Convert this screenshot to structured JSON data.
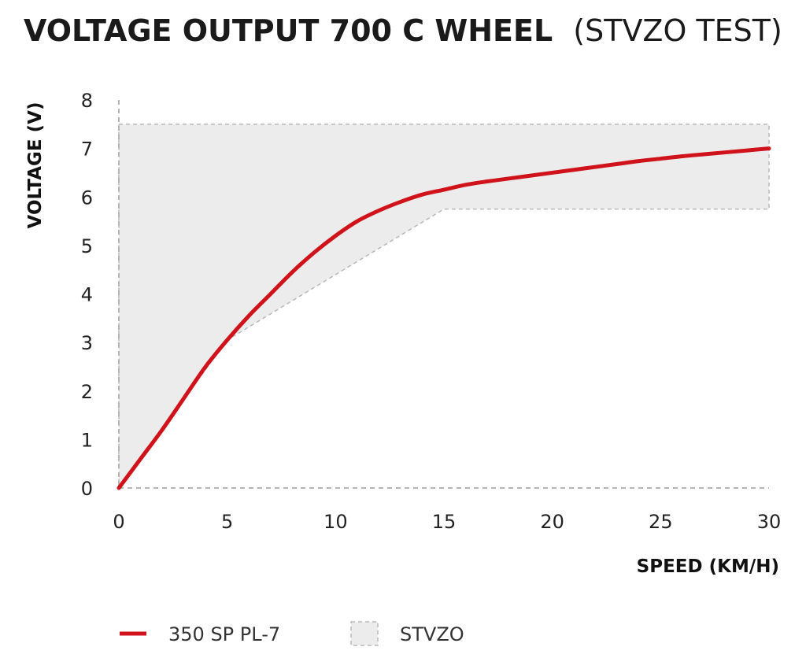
{
  "colors": {
    "series_line": "#d0121b",
    "band_fill": "#ececec",
    "band_stroke": "#b9b9b9",
    "text": "#1a1a1a",
    "axis": "#b5b5b5"
  },
  "chart_data": {
    "type": "line",
    "title": "VOLTAGE OUTPUT 700 C WHEEL",
    "subtitle": "(STVZO TEST)",
    "xlabel": "SPEED (KM/H)",
    "ylabel": "VOLTAGE (V)",
    "xlim": [
      0,
      30
    ],
    "ylim": [
      0,
      8
    ],
    "x_ticks": [
      0,
      5,
      10,
      15,
      20,
      25,
      30
    ],
    "y_ticks": [
      0,
      1,
      2,
      3,
      4,
      5,
      6,
      7,
      8
    ],
    "grid": false,
    "legend": "bottom",
    "series": [
      {
        "name": "350 SP PL-7",
        "x": [
          0,
          1,
          2,
          3,
          4,
          5,
          6,
          7,
          8,
          9,
          10,
          11,
          12,
          13,
          14,
          15,
          16,
          17,
          18,
          19,
          20,
          21,
          22,
          23,
          24,
          25,
          26,
          27,
          28,
          29,
          30
        ],
        "y": [
          0,
          0.6,
          1.2,
          1.85,
          2.5,
          3.05,
          3.55,
          4.0,
          4.45,
          4.85,
          5.2,
          5.5,
          5.72,
          5.9,
          6.05,
          6.15,
          6.25,
          6.32,
          6.38,
          6.44,
          6.5,
          6.56,
          6.62,
          6.68,
          6.74,
          6.79,
          6.84,
          6.88,
          6.92,
          6.96,
          7.0
        ]
      }
    ],
    "bands": [
      {
        "name": "STVZO",
        "x": [
          0,
          5,
          10,
          15,
          30
        ],
        "upper": [
          7.5,
          7.5,
          7.5,
          7.5,
          7.5
        ],
        "lower": [
          0,
          3.05,
          4.4,
          5.75,
          5.75
        ]
      }
    ]
  }
}
